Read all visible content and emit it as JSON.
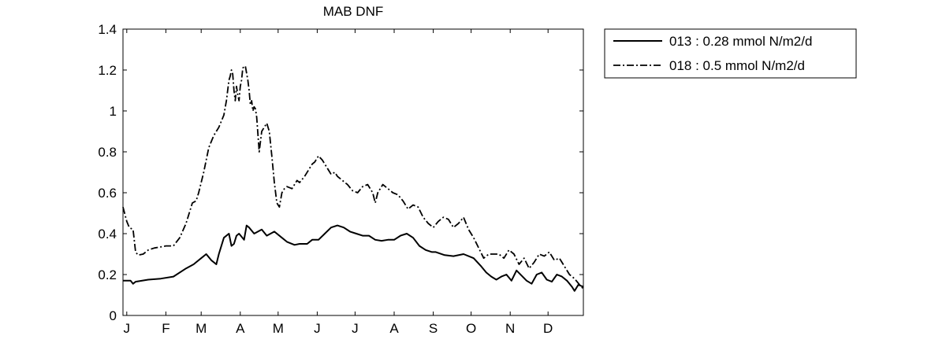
{
  "chart_data": {
    "type": "line",
    "title": "MAB DNF",
    "xlabel": "",
    "ylabel": "",
    "xlim": [
      0,
      365
    ],
    "ylim": [
      0,
      1.4
    ],
    "grid": false,
    "legend_position": "outside-top-right",
    "x_tick_positions": [
      3,
      34,
      62,
      93,
      123,
      154,
      184,
      215,
      246,
      276,
      307,
      337
    ],
    "x_tick_labels": [
      "J",
      "F",
      "M",
      "A",
      "M",
      "J",
      "J",
      "A",
      "S",
      "O",
      "N",
      "D"
    ],
    "y_ticks": [
      0,
      0.2,
      0.4,
      0.6,
      0.8,
      1,
      1.2,
      1.4
    ],
    "y_tick_labels": [
      "0",
      "0.2",
      "0.4",
      "0.6",
      "0.8",
      "1",
      "1.2",
      "1.4"
    ],
    "series": [
      {
        "name": "013 : 0.28 mmol N/m2/d",
        "line_style": "solid",
        "color": "#000000",
        "x": [
          0,
          6,
          8,
          10,
          20,
          30,
          40,
          50,
          56,
          62,
          66,
          70,
          74,
          76,
          80,
          84,
          86,
          88,
          90,
          92,
          96,
          98,
          100,
          104,
          110,
          114,
          120,
          126,
          130,
          136,
          140,
          146,
          150,
          155,
          160,
          165,
          170,
          175,
          180,
          185,
          190,
          195,
          200,
          205,
          210,
          215,
          220,
          225,
          230,
          235,
          240,
          245,
          248,
          255,
          262,
          270,
          278,
          284,
          288,
          292,
          296,
          300,
          304,
          308,
          312,
          316,
          320,
          324,
          328,
          332,
          336,
          340,
          344,
          348,
          352,
          356,
          358,
          361,
          365
        ],
        "values": [
          0.17,
          0.17,
          0.155,
          0.165,
          0.175,
          0.18,
          0.19,
          0.23,
          0.25,
          0.28,
          0.3,
          0.27,
          0.25,
          0.3,
          0.38,
          0.4,
          0.34,
          0.35,
          0.39,
          0.4,
          0.37,
          0.44,
          0.43,
          0.4,
          0.42,
          0.39,
          0.41,
          0.38,
          0.36,
          0.345,
          0.35,
          0.35,
          0.37,
          0.37,
          0.4,
          0.43,
          0.44,
          0.43,
          0.41,
          0.4,
          0.39,
          0.39,
          0.37,
          0.365,
          0.37,
          0.37,
          0.39,
          0.4,
          0.38,
          0.34,
          0.32,
          0.31,
          0.31,
          0.295,
          0.29,
          0.3,
          0.28,
          0.24,
          0.21,
          0.19,
          0.175,
          0.19,
          0.2,
          0.17,
          0.22,
          0.195,
          0.17,
          0.155,
          0.2,
          0.21,
          0.175,
          0.165,
          0.2,
          0.19,
          0.17,
          0.14,
          0.12,
          0.15,
          0.14
        ]
      },
      {
        "name": "018 : 0.5 mmol N/m2/d",
        "line_style": "dashdot",
        "color": "#000000",
        "x": [
          0,
          3,
          5,
          8,
          10,
          12,
          16,
          20,
          25,
          30,
          34,
          40,
          45,
          50,
          55,
          58,
          60,
          62,
          64,
          68,
          72,
          74,
          76,
          78,
          80,
          82,
          84,
          85,
          86,
          87,
          88,
          89,
          90,
          91,
          92,
          93,
          94,
          95,
          97,
          99,
          100,
          101,
          102,
          103,
          104,
          105,
          106,
          108,
          110,
          112,
          114,
          116,
          118,
          120,
          122,
          124,
          126,
          128,
          130,
          134,
          138,
          140,
          144,
          148,
          150,
          152,
          155,
          158,
          160,
          163,
          165,
          168,
          170,
          174,
          178,
          182,
          186,
          190,
          194,
          198,
          200,
          202,
          206,
          210,
          214,
          218,
          222,
          226,
          230,
          234,
          238,
          242,
          246,
          250,
          254,
          258,
          262,
          266,
          270,
          274,
          278,
          282,
          286,
          290,
          294,
          298,
          302,
          306,
          310,
          314,
          318,
          322,
          326,
          330,
          334,
          338,
          342,
          346,
          350,
          354,
          358,
          362,
          365
        ],
        "values": [
          0.53,
          0.46,
          0.43,
          0.42,
          0.31,
          0.295,
          0.3,
          0.32,
          0.33,
          0.335,
          0.34,
          0.34,
          0.38,
          0.45,
          0.55,
          0.56,
          0.6,
          0.65,
          0.7,
          0.82,
          0.88,
          0.9,
          0.92,
          0.95,
          0.98,
          1.05,
          1.15,
          1.17,
          1.2,
          1.18,
          1.1,
          1.05,
          1.12,
          1.08,
          1.05,
          1.12,
          1.15,
          1.21,
          1.22,
          1.15,
          1.1,
          1.03,
          1.05,
          1.0,
          1.02,
          1.01,
          0.97,
          0.8,
          0.9,
          0.92,
          0.94,
          0.9,
          0.78,
          0.65,
          0.55,
          0.53,
          0.6,
          0.62,
          0.63,
          0.62,
          0.66,
          0.65,
          0.68,
          0.72,
          0.74,
          0.75,
          0.78,
          0.76,
          0.74,
          0.71,
          0.69,
          0.7,
          0.68,
          0.66,
          0.64,
          0.61,
          0.6,
          0.63,
          0.64,
          0.6,
          0.55,
          0.6,
          0.64,
          0.62,
          0.6,
          0.59,
          0.56,
          0.52,
          0.54,
          0.53,
          0.48,
          0.45,
          0.43,
          0.46,
          0.48,
          0.47,
          0.43,
          0.45,
          0.48,
          0.42,
          0.38,
          0.33,
          0.28,
          0.3,
          0.3,
          0.3,
          0.28,
          0.32,
          0.3,
          0.25,
          0.28,
          0.23,
          0.26,
          0.3,
          0.29,
          0.31,
          0.27,
          0.28,
          0.24,
          0.2,
          0.18,
          0.15,
          0.13
        ]
      }
    ]
  }
}
